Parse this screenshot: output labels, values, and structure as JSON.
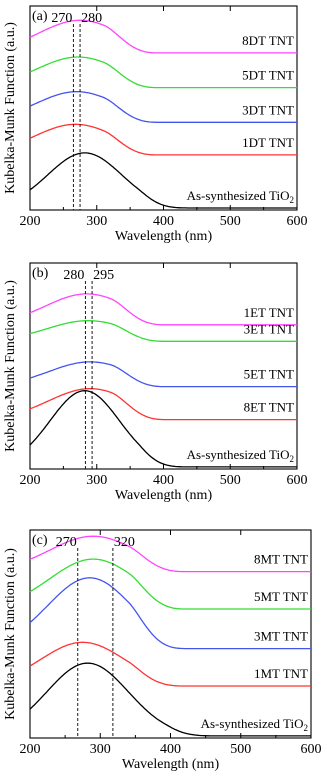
{
  "figure": {
    "ylabel": "Kubelka-Munk Function (a.u.)",
    "xlabel": "Wavelength (nm)"
  },
  "chart_data": [
    {
      "type": "line",
      "panel_label": "(a)",
      "xlabel": "Wavelength (nm)",
      "ylabel": "Kubelka-Munk Function (a.u.)",
      "xlim": [
        200,
        600
      ],
      "xticks": [
        200,
        300,
        400,
        500,
        600
      ],
      "grid": false,
      "peak_markers": [
        {
          "x": 265,
          "label": "270"
        },
        {
          "x": 275,
          "label": "280"
        }
      ],
      "series": [
        {
          "name": "8DT TNT",
          "color": "#ff44ff",
          "base": 0.77,
          "height": 0.16,
          "center": 275,
          "width": 62,
          "edge": 350
        },
        {
          "name": "5DT TNT",
          "color": "#33dd33",
          "base": 0.6,
          "height": 0.15,
          "center": 272,
          "width": 62,
          "edge": 350
        },
        {
          "name": "3DT TNT",
          "color": "#4455ee",
          "base": 0.43,
          "height": 0.15,
          "center": 270,
          "width": 62,
          "edge": 350
        },
        {
          "name": "1DT TNT",
          "color": "#ff3333",
          "base": 0.27,
          "height": 0.15,
          "center": 268,
          "width": 62,
          "edge": 350
        },
        {
          "name": "As-synthesized TiO",
          "subscript": "2",
          "color": "#000000",
          "base": 0.01,
          "height": 0.27,
          "center": 282,
          "width": 55,
          "edge": 400
        }
      ]
    },
    {
      "type": "line",
      "panel_label": "(b)",
      "xlabel": "Wavelength (nm)",
      "ylabel": "Kubelka-Munk Function (a.u.)",
      "xlim": [
        200,
        600
      ],
      "xticks": [
        200,
        300,
        400,
        500,
        600
      ],
      "grid": false,
      "peak_markers": [
        {
          "x": 283,
          "label": "280"
        },
        {
          "x": 293,
          "label": "295"
        }
      ],
      "series": [
        {
          "name": "1ET TNT",
          "color": "#ff44ff",
          "base": 0.7,
          "height": 0.15,
          "center": 285,
          "width": 62,
          "edge": 360
        },
        {
          "name": "3ET TNT",
          "color": "#33dd33",
          "base": 0.62,
          "height": 0.1,
          "center": 287,
          "width": 62,
          "edge": 360
        },
        {
          "name": "5ET TNT",
          "color": "#4455ee",
          "base": 0.4,
          "height": 0.12,
          "center": 290,
          "width": 62,
          "edge": 360
        },
        {
          "name": "8ET TNT",
          "color": "#ff3333",
          "base": 0.24,
          "height": 0.15,
          "center": 290,
          "width": 62,
          "edge": 360
        },
        {
          "name": "As-synthesized TiO",
          "subscript": "2",
          "color": "#000000",
          "base": 0.01,
          "height": 0.37,
          "center": 282,
          "width": 52,
          "edge": 400
        }
      ]
    },
    {
      "type": "line",
      "panel_label": "(c)",
      "xlabel": "Wavelength (nm)",
      "ylabel": "Kubelka-Munk Function (a.u.)",
      "xlim": [
        200,
        600
      ],
      "xticks": [
        200,
        300,
        400,
        500,
        600
      ],
      "grid": false,
      "peak_markers": [
        {
          "x": 268,
          "label": "270"
        },
        {
          "x": 318,
          "label": "320"
        }
      ],
      "series": [
        {
          "name": "8MT TNT",
          "color": "#ff44ff",
          "base": 0.8,
          "height": 0.17,
          "center": 290,
          "width": 62,
          "edge": 380
        },
        {
          "name": "5MT TNT",
          "color": "#33dd33",
          "base": 0.62,
          "height": 0.24,
          "center": 290,
          "width": 62,
          "edge": 380
        },
        {
          "name": "3MT TNT",
          "color": "#4455ee",
          "base": 0.43,
          "height": 0.34,
          "center": 285,
          "width": 60,
          "edge": 380
        },
        {
          "name": "1MT TNT",
          "color": "#ff3333",
          "base": 0.25,
          "height": 0.21,
          "center": 275,
          "width": 60,
          "edge": 380
        },
        {
          "name": "As-synthesized TiO",
          "subscript": "2",
          "color": "#000000",
          "base": 0.01,
          "height": 0.35,
          "center": 282,
          "width": 58,
          "edge": 430
        }
      ]
    }
  ]
}
